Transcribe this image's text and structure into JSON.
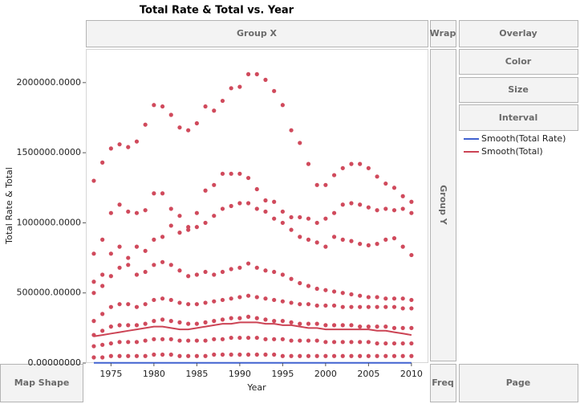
{
  "drop_zones": {
    "group_x": "Group X",
    "wrap": "Wrap",
    "overlay": "Overlay",
    "color": "Color",
    "size": "Size",
    "interval": "Interval",
    "group_y": "Group Y",
    "map_shape": "Map Shape",
    "freq": "Freq",
    "page": "Page"
  },
  "chart_data": {
    "type": "scatter",
    "title": "Total Rate & Total vs. Year",
    "x_label": "Year",
    "y_label": "Total Rate & Total",
    "x": [
      1973,
      1974,
      1975,
      1976,
      1977,
      1978,
      1979,
      1980,
      1981,
      1982,
      1983,
      1984,
      1985,
      1986,
      1987,
      1988,
      1989,
      1990,
      1991,
      1992,
      1993,
      1994,
      1995,
      1996,
      1997,
      1998,
      1999,
      2000,
      2001,
      2002,
      2003,
      2004,
      2005,
      2006,
      2007,
      2008,
      2009,
      2010
    ],
    "xlim": [
      1972.07,
      2011.88
    ],
    "xticks": [
      1975,
      1980,
      1985,
      1990,
      1995,
      2000,
      2005,
      2010
    ],
    "ylim": [
      0,
      2234000
    ],
    "yticks": [
      {
        "value": 0,
        "label": "0.00000000"
      },
      {
        "value": 500000,
        "label": "500000.00000"
      },
      {
        "value": 1000000,
        "label": "1000000.0000"
      },
      {
        "value": 1500000,
        "label": "1500000.0000"
      },
      {
        "value": 2000000,
        "label": "2000000.0000"
      }
    ],
    "points": {
      "color": "#d04a5c",
      "tracks": [
        [
          1300000,
          1430000,
          1530000,
          1560000,
          1540000,
          1580000,
          1700000,
          1840000,
          1830000,
          1770000,
          1680000,
          1660000,
          1710000,
          1830000,
          1800000,
          1870000,
          1960000,
          1970000,
          2060000,
          2060000,
          2020000,
          1940000,
          1840000,
          1660000,
          1570000,
          1420000,
          1270000,
          1270000,
          1340000,
          1390000,
          1420000,
          1420000,
          1390000,
          1330000,
          1280000,
          1250000,
          1190000,
          1150000
        ],
        [
          780000,
          880000,
          1070000,
          1130000,
          1080000,
          1070000,
          1090000,
          1210000,
          1210000,
          1100000,
          1050000,
          970000,
          1070000,
          1230000,
          1270000,
          1350000,
          1350000,
          1350000,
          1320000,
          1240000,
          1160000,
          1150000,
          1080000,
          1040000,
          1040000,
          1030000,
          1000000,
          1030000,
          1070000,
          1130000,
          1140000,
          1130000,
          1110000,
          1090000,
          1100000,
          1090000,
          1100000,
          1070000
        ],
        [
          580000,
          630000,
          780000,
          830000,
          750000,
          830000,
          800000,
          880000,
          900000,
          980000,
          930000,
          950000,
          970000,
          1000000,
          1050000,
          1100000,
          1120000,
          1140000,
          1140000,
          1100000,
          1080000,
          1030000,
          1000000,
          950000,
          900000,
          880000,
          860000,
          830000,
          900000,
          880000,
          870000,
          850000,
          840000,
          850000,
          880000,
          890000,
          830000,
          770000
        ],
        [
          500000,
          550000,
          620000,
          680000,
          700000,
          630000,
          650000,
          700000,
          720000,
          700000,
          660000,
          620000,
          630000,
          650000,
          630000,
          650000,
          670000,
          680000,
          710000,
          680000,
          660000,
          650000,
          630000,
          600000,
          570000,
          550000,
          530000,
          520000,
          510000,
          500000,
          490000,
          480000,
          470000,
          470000,
          460000,
          460000,
          460000,
          450000
        ],
        [
          300000,
          350000,
          400000,
          420000,
          420000,
          400000,
          420000,
          450000,
          460000,
          450000,
          430000,
          420000,
          420000,
          430000,
          440000,
          450000,
          460000,
          470000,
          480000,
          470000,
          460000,
          450000,
          440000,
          430000,
          420000,
          420000,
          410000,
          410000,
          410000,
          400000,
          400000,
          400000,
          400000,
          400000,
          400000,
          400000,
          390000,
          390000
        ],
        [
          200000,
          230000,
          260000,
          270000,
          270000,
          270000,
          280000,
          300000,
          310000,
          300000,
          290000,
          280000,
          280000,
          290000,
          300000,
          310000,
          320000,
          320000,
          330000,
          320000,
          310000,
          300000,
          300000,
          290000,
          280000,
          280000,
          280000,
          270000,
          270000,
          270000,
          270000,
          260000,
          260000,
          260000,
          260000,
          250000,
          250000,
          250000
        ],
        [
          120000,
          130000,
          140000,
          150000,
          150000,
          150000,
          160000,
          170000,
          170000,
          170000,
          160000,
          160000,
          160000,
          160000,
          170000,
          170000,
          180000,
          180000,
          180000,
          180000,
          170000,
          170000,
          170000,
          160000,
          160000,
          160000,
          160000,
          150000,
          150000,
          150000,
          150000,
          150000,
          150000,
          140000,
          140000,
          140000,
          140000,
          140000
        ],
        [
          40000,
          40000,
          50000,
          50000,
          50000,
          50000,
          50000,
          60000,
          60000,
          60000,
          50000,
          50000,
          50000,
          50000,
          60000,
          60000,
          60000,
          60000,
          60000,
          60000,
          60000,
          60000,
          50000,
          50000,
          50000,
          50000,
          50000,
          50000,
          50000,
          50000,
          50000,
          50000,
          50000,
          50000,
          50000,
          50000,
          50000,
          50000
        ]
      ]
    },
    "series": [
      {
        "name": "Smooth(Total Rate)",
        "color": "#4062d0",
        "values": [
          2000,
          2000,
          2000,
          2000,
          2000,
          2000,
          2000,
          2000,
          2000,
          2000,
          2000,
          2000,
          2000,
          2000,
          2000,
          2000,
          2000,
          2000,
          2000,
          2000,
          2000,
          2000,
          2000,
          2000,
          2000,
          2000,
          2000,
          2000,
          2000,
          2000,
          2000,
          2000,
          2000,
          2000,
          2000,
          2000,
          2000,
          2000
        ]
      },
      {
        "name": "Smooth(Total)",
        "color": "#cc4455",
        "values": [
          190000,
          200000,
          210000,
          220000,
          230000,
          240000,
          250000,
          260000,
          260000,
          250000,
          240000,
          240000,
          250000,
          260000,
          270000,
          280000,
          280000,
          290000,
          290000,
          290000,
          280000,
          280000,
          270000,
          270000,
          260000,
          250000,
          250000,
          240000,
          240000,
          240000,
          240000,
          240000,
          240000,
          230000,
          230000,
          220000,
          210000,
          200000
        ]
      }
    ]
  }
}
